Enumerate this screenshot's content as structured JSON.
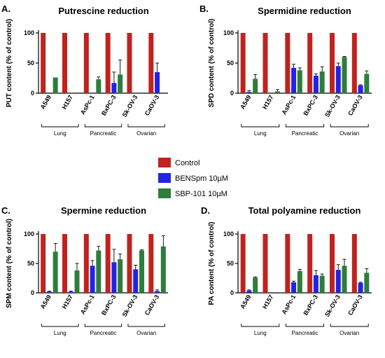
{
  "colors": {
    "control": "#c0231e",
    "bens": "#2323e6",
    "sbp": "#2e7d3c"
  },
  "legend": [
    {
      "key": "control",
      "label": "Control"
    },
    {
      "key": "bens",
      "label": "BENSpm 10µM"
    },
    {
      "key": "sbp",
      "label": "SBP-101 10µM"
    }
  ],
  "chart_data": [
    {
      "type": "bar",
      "panel_label": "A.",
      "title": "Putrescine reduction",
      "ylabel": "PUT content (% of control)",
      "ylim": [
        0,
        100
      ],
      "yticks": [
        0,
        50,
        100
      ],
      "categories": [
        "A549",
        "H157",
        "AsPc-1",
        "BxPC-3",
        "Sk-OV-3",
        "CaOV-3"
      ],
      "groups": [
        {
          "label": "Lung",
          "from": 0,
          "to": 1
        },
        {
          "label": "Pancreatic",
          "from": 2,
          "to": 3
        },
        {
          "label": "Ovarian",
          "from": 4,
          "to": 5
        }
      ],
      "series": [
        {
          "key": "control",
          "name": "Control",
          "values": [
            100,
            100,
            100,
            100,
            100,
            100
          ],
          "errors": [
            0,
            0,
            0,
            0,
            0,
            0
          ]
        },
        {
          "key": "bens",
          "name": "BENSpm 10µM",
          "values": [
            0,
            0,
            0,
            17,
            0,
            35
          ],
          "errors": [
            0,
            0,
            0,
            18,
            0,
            15
          ]
        },
        {
          "key": "sbp",
          "name": "SBP-101 10µM",
          "values": [
            26,
            0,
            23,
            31,
            0,
            0
          ],
          "errors": [
            0,
            0,
            4,
            24,
            0,
            0
          ]
        }
      ]
    },
    {
      "type": "bar",
      "panel_label": "B.",
      "title": "Spermidine reduction",
      "ylabel": "SPD content (% of control)",
      "ylim": [
        0,
        100
      ],
      "yticks": [
        0,
        50,
        100
      ],
      "categories": [
        "A549",
        "H157",
        "AsPc-1",
        "BxPC-3",
        "Sk-OV-3",
        "CaOV-3"
      ],
      "groups": [
        {
          "label": "Lung",
          "from": 0,
          "to": 1
        },
        {
          "label": "Pancreatic",
          "from": 2,
          "to": 3
        },
        {
          "label": "Ovarian",
          "from": 4,
          "to": 5
        }
      ],
      "series": [
        {
          "key": "control",
          "name": "Control",
          "values": [
            100,
            100,
            100,
            100,
            100,
            100
          ],
          "errors": [
            0,
            0,
            0,
            0,
            0,
            0
          ]
        },
        {
          "key": "bens",
          "name": "BENSpm 10µM",
          "values": [
            2,
            0,
            42,
            29,
            45,
            13
          ],
          "errors": [
            2,
            0,
            6,
            3,
            5,
            1
          ]
        },
        {
          "key": "sbp",
          "name": "SBP-101 10µM",
          "values": [
            24,
            3,
            38,
            36,
            60,
            32
          ],
          "errors": [
            7,
            3,
            4,
            8,
            1,
            5
          ]
        }
      ]
    },
    {
      "type": "bar",
      "panel_label": "C.",
      "title": "Spermine reduction",
      "ylabel": "SPM content (% of control)",
      "ylim": [
        0,
        100
      ],
      "yticks": [
        0,
        50,
        100
      ],
      "categories": [
        "A549",
        "H157",
        "AsPc-1",
        "BxPC-3",
        "Sk-OV-3",
        "CaOV-3"
      ],
      "groups": [
        {
          "label": "Lung",
          "from": 0,
          "to": 1
        },
        {
          "label": "Pancreatic",
          "from": 2,
          "to": 3
        },
        {
          "label": "Ovarian",
          "from": 4,
          "to": 5
        }
      ],
      "series": [
        {
          "key": "control",
          "name": "Control",
          "values": [
            100,
            100,
            100,
            100,
            100,
            100
          ],
          "errors": [
            0,
            0,
            0,
            0,
            0,
            0
          ]
        },
        {
          "key": "bens",
          "name": "BENSpm 10µM",
          "values": [
            2,
            2,
            46,
            52,
            40,
            3
          ],
          "errors": [
            1,
            1,
            9,
            22,
            7,
            2
          ]
        },
        {
          "key": "sbp",
          "name": "SBP-101 10µM",
          "values": [
            70,
            38,
            72,
            57,
            72,
            79
          ],
          "errors": [
            14,
            12,
            7,
            9,
            1,
            18
          ]
        }
      ]
    },
    {
      "type": "bar",
      "panel_label": "D.",
      "title": "Total polyamine reduction",
      "ylabel": "PA content (% of control)",
      "ylim": [
        0,
        100
      ],
      "yticks": [
        0,
        50,
        100
      ],
      "categories": [
        "A549",
        "H157",
        "AsPc-1",
        "BxPC-3",
        "Sk-OV-3",
        "CaOV-3"
      ],
      "groups": [
        {
          "label": "Lung",
          "from": 0,
          "to": 1
        },
        {
          "label": "Pancreatic",
          "from": 2,
          "to": 3
        },
        {
          "label": "Ovarian",
          "from": 4,
          "to": 5
        }
      ],
      "series": [
        {
          "key": "control",
          "name": "Control",
          "values": [
            100,
            100,
            100,
            100,
            100,
            100
          ],
          "errors": [
            0,
            0,
            0,
            0,
            0,
            0
          ]
        },
        {
          "key": "bens",
          "name": "BENSpm 10µM",
          "values": [
            4,
            0,
            18,
            30,
            39,
            17
          ],
          "errors": [
            1,
            0,
            2,
            8,
            9,
            1
          ]
        },
        {
          "key": "sbp",
          "name": "SBP-101 10µM",
          "values": [
            26,
            0,
            37,
            29,
            46,
            34
          ],
          "errors": [
            1,
            0,
            3,
            3,
            11,
            7
          ]
        }
      ]
    }
  ]
}
